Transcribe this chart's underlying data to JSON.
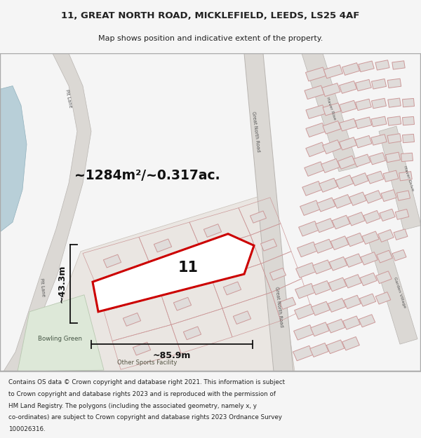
{
  "title_line1": "11, GREAT NORTH ROAD, MICKLEFIELD, LEEDS, LS25 4AF",
  "title_line2": "Map shows position and indicative extent of the property.",
  "area_label": "~1284m²/~0.317ac.",
  "dim_width": "~85.9m",
  "dim_height": "~43.3m",
  "plot_number": "11",
  "footer": "Contains OS data © Crown copyright and database right 2021. This information is subject to Crown copyright and database rights 2023 and is reproduced with the permission of HM Land Registry. The polygons (including the associated geometry, namely x, y co-ordinates) are subject to Crown copyright and database rights 2023 Ordnance Survey 100026316.",
  "bg_color": "#f5f5f5",
  "map_bg": "#f0eeec",
  "road_fill": "#dbd8d4",
  "road_edge": "#b8b4b0",
  "property_color": "#cc0000",
  "building_fill": "#e0dcda",
  "building_edge": "#cc9999",
  "green_fill": "#dde8d8",
  "green_edge": "#b8c8b0",
  "text_color": "#222222",
  "road_text_color": "#555555",
  "dim_color": "#111111"
}
